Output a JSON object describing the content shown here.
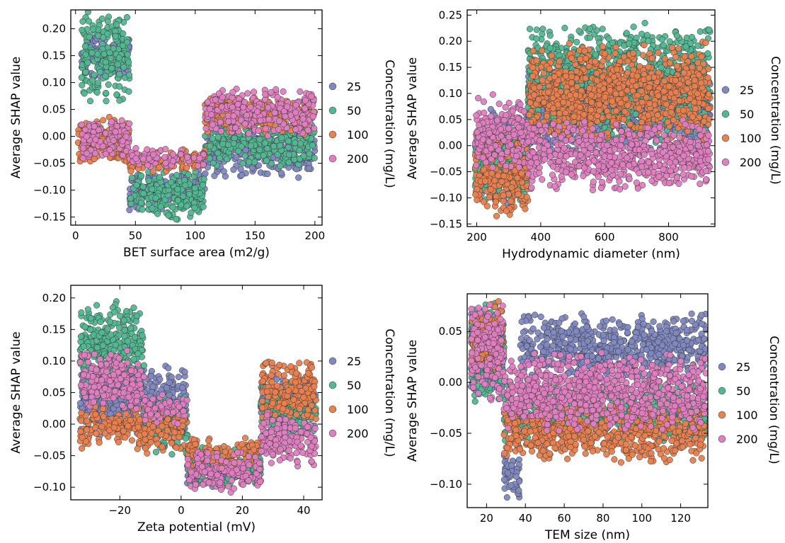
{
  "chart_data": [
    {
      "type": "scatter",
      "xlabel": "BET surface area (m2/g)",
      "ylabel": "Average SHAP value",
      "xlim": [
        -4,
        206
      ],
      "ylim": [
        -0.165,
        0.235
      ],
      "xticks": [
        "0",
        "50",
        "100",
        "150",
        "200"
      ],
      "yticks": [
        "−0.15",
        "−0.10",
        "−0.05",
        "0.00",
        "0.05",
        "0.10",
        "0.15",
        "0.20"
      ],
      "legend_title": "Concentration (mg/L)",
      "legend_position": "right",
      "series": [
        {
          "name": "25",
          "color": "#7f88c0",
          "clusters": [
            {
              "x": [
                5,
                45
              ],
              "y": [
                0.1,
                0.2
              ]
            },
            {
              "x": [
                45,
                108
              ],
              "y": [
                -0.14,
                -0.06
              ]
            },
            {
              "x": [
                108,
                200
              ],
              "y": [
                -0.08,
                0.03
              ]
            }
          ]
        },
        {
          "name": "50",
          "color": "#52b792",
          "clusters": [
            {
              "x": [
                5,
                45
              ],
              "y": [
                0.06,
                0.235
              ]
            },
            {
              "x": [
                45,
                108
              ],
              "y": [
                -0.16,
                -0.06
              ]
            },
            {
              "x": [
                108,
                200
              ],
              "y": [
                -0.06,
                0.03
              ]
            }
          ]
        },
        {
          "name": "100",
          "color": "#e8804f",
          "clusters": [
            {
              "x": [
                2,
                45
              ],
              "y": [
                -0.055,
                0.04
              ]
            },
            {
              "x": [
                45,
                108
              ],
              "y": [
                -0.07,
                -0.02
              ]
            },
            {
              "x": [
                108,
                200
              ],
              "y": [
                0.0,
                0.08
              ]
            }
          ]
        },
        {
          "name": "200",
          "color": "#df7ec0",
          "clusters": [
            {
              "x": [
                5,
                45
              ],
              "y": [
                -0.05,
                0.04
              ]
            },
            {
              "x": [
                45,
                108
              ],
              "y": [
                -0.06,
                -0.02
              ]
            },
            {
              "x": [
                108,
                200
              ],
              "y": [
                0.0,
                0.09
              ]
            }
          ]
        }
      ]
    },
    {
      "type": "scatter",
      "xlabel": "Hydrodynamic diameter (nm)",
      "ylabel": "Average SHAP value",
      "xlim": [
        170,
        945
      ],
      "ylim": [
        -0.155,
        0.26
      ],
      "xticks": [
        "200",
        "400",
        "600",
        "800"
      ],
      "yticks": [
        "−0.15",
        "−0.10",
        "−0.05",
        "0.00",
        "0.05",
        "0.10",
        "0.15",
        "0.20",
        "0.25"
      ],
      "legend_title": "Concentration (mg/L)",
      "legend_position": "right",
      "series": [
        {
          "name": "25",
          "color": "#7f88c0",
          "clusters": [
            {
              "x": [
                195,
                360
              ],
              "y": [
                -0.12,
                0.08
              ]
            },
            {
              "x": [
                360,
                930
              ],
              "y": [
                -0.02,
                0.15
              ]
            }
          ]
        },
        {
          "name": "50",
          "color": "#52b792",
          "clusters": [
            {
              "x": [
                195,
                360
              ],
              "y": [
                -0.12,
                0.05
              ]
            },
            {
              "x": [
                360,
                930
              ],
              "y": [
                0.0,
                0.24
              ]
            }
          ]
        },
        {
          "name": "100",
          "color": "#e8804f",
          "clusters": [
            {
              "x": [
                195,
                360
              ],
              "y": [
                -0.14,
                0.03
              ]
            },
            {
              "x": [
                360,
                930
              ],
              "y": [
                0.0,
                0.2
              ]
            }
          ]
        },
        {
          "name": "200",
          "color": "#df7ec0",
          "clusters": [
            {
              "x": [
                195,
                360
              ],
              "y": [
                -0.05,
                0.1
              ]
            },
            {
              "x": [
                360,
                930
              ],
              "y": [
                -0.09,
                0.05
              ]
            }
          ]
        }
      ]
    },
    {
      "type": "scatter",
      "xlabel": "Zeta potential (mV)",
      "ylabel": "Average SHAP value",
      "xlim": [
        -36,
        46
      ],
      "ylim": [
        -0.12,
        0.22
      ],
      "xticks": [
        "−20",
        "0",
        "20",
        "40"
      ],
      "yticks": [
        "−0.10",
        "−0.05",
        "0.00",
        "0.05",
        "0.10",
        "0.15",
        "0.20"
      ],
      "legend_title": "Concentration (mg/L)",
      "legend_position": "right",
      "series": [
        {
          "name": "25",
          "color": "#7f88c0",
          "clusters": [
            {
              "x": [
                -33,
                2
              ],
              "y": [
                -0.02,
                0.1
              ]
            },
            {
              "x": [
                2,
                26
              ],
              "y": [
                -0.1,
                -0.05
              ]
            },
            {
              "x": [
                26,
                44
              ],
              "y": [
                -0.02,
                0.08
              ]
            }
          ]
        },
        {
          "name": "50",
          "color": "#52b792",
          "clusters": [
            {
              "x": [
                -33,
                -12
              ],
              "y": [
                0.06,
                0.2
              ]
            },
            {
              "x": [
                -12,
                2
              ],
              "y": [
                -0.05,
                0.05
              ]
            },
            {
              "x": [
                2,
                26
              ],
              "y": [
                -0.1,
                -0.03
              ]
            },
            {
              "x": [
                26,
                44
              ],
              "y": [
                -0.02,
                0.07
              ]
            }
          ]
        },
        {
          "name": "100",
          "color": "#e8804f",
          "clusters": [
            {
              "x": [
                -33,
                -12
              ],
              "y": [
                -0.04,
                0.03
              ]
            },
            {
              "x": [
                -12,
                2
              ],
              "y": [
                -0.05,
                0.03
              ]
            },
            {
              "x": [
                2,
                26
              ],
              "y": [
                -0.07,
                -0.02
              ]
            },
            {
              "x": [
                26,
                44
              ],
              "y": [
                0.0,
                0.11
              ]
            }
          ]
        },
        {
          "name": "200",
          "color": "#df7ec0",
          "clusters": [
            {
              "x": [
                -33,
                -12
              ],
              "y": [
                0.02,
                0.12
              ]
            },
            {
              "x": [
                -12,
                2
              ],
              "y": [
                0.0,
                0.05
              ]
            },
            {
              "x": [
                2,
                26
              ],
              "y": [
                -0.11,
                -0.04
              ]
            },
            {
              "x": [
                26,
                44
              ],
              "y": [
                -0.07,
                0.02
              ]
            }
          ]
        }
      ]
    },
    {
      "type": "scatter",
      "xlabel": "TEM size (nm)",
      "ylabel": "Average SHAP value",
      "xlim": [
        10,
        134
      ],
      "ylim": [
        -0.123,
        0.087
      ],
      "xticks": [
        "20",
        "40",
        "60",
        "80",
        "100",
        "120"
      ],
      "yticks": [
        "−0.10",
        "−0.05",
        "0.00",
        "0.05"
      ],
      "legend_title": "Concentration (mg/L)",
      "legend_position": "right",
      "series": [
        {
          "name": "25",
          "color": "#7f88c0",
          "clusters": [
            {
              "x": [
                12,
                29
              ],
              "y": [
                -0.02,
                0.08
              ]
            },
            {
              "x": [
                29,
                37
              ],
              "y": [
                -0.12,
                -0.06
              ]
            },
            {
              "x": [
                37,
                133
              ],
              "y": [
                0.0,
                0.07
              ]
            }
          ]
        },
        {
          "name": "50",
          "color": "#52b792",
          "clusters": [
            {
              "x": [
                12,
                29
              ],
              "y": [
                -0.02,
                0.08
              ]
            },
            {
              "x": [
                29,
                133
              ],
              "y": [
                -0.06,
                0.0
              ]
            }
          ]
        },
        {
          "name": "100",
          "color": "#e8804f",
          "clusters": [
            {
              "x": [
                12,
                29
              ],
              "y": [
                0.0,
                0.08
              ]
            },
            {
              "x": [
                29,
                133
              ],
              "y": [
                -0.08,
                -0.02
              ]
            }
          ]
        },
        {
          "name": "200",
          "color": "#df7ec0",
          "clusters": [
            {
              "x": [
                12,
                29
              ],
              "y": [
                -0.02,
                0.085
              ]
            },
            {
              "x": [
                29,
                133
              ],
              "y": [
                -0.05,
                0.03
              ]
            }
          ]
        }
      ]
    }
  ]
}
